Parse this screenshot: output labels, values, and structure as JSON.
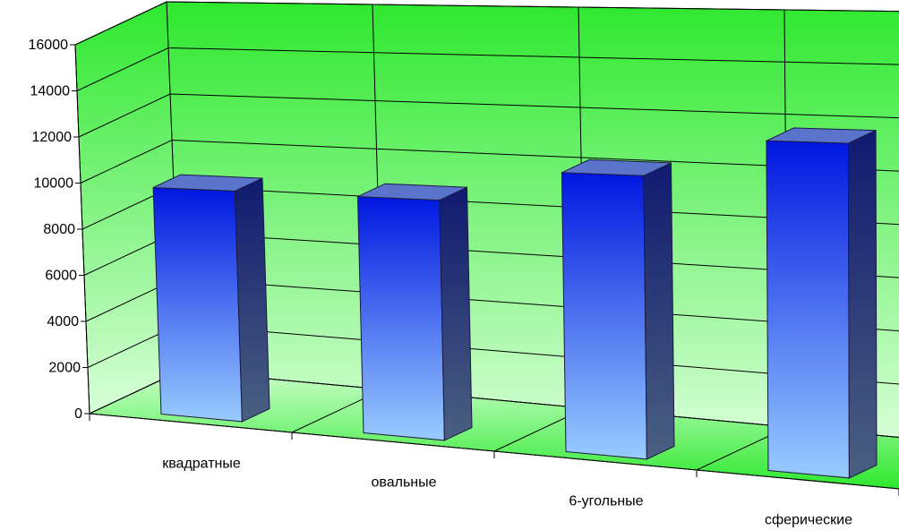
{
  "chart_data": {
    "type": "bar",
    "style": "3d-column",
    "categories": [
      "квадратные",
      "овальные",
      "6-угольные",
      "сферические"
    ],
    "values": [
      9700,
      9700,
      11000,
      12500
    ],
    "y_ticks": [
      "0",
      "2000",
      "4000",
      "6000",
      "8000",
      "10000",
      "12000",
      "14000",
      "16000"
    ],
    "ylim": [
      0,
      16000
    ],
    "grid": true,
    "legend": "none",
    "colors": {
      "wall_top": "#2ee82e",
      "wall_bottom": "#d9ffd9",
      "floor_near": "#2ee82e",
      "floor_far": "#c9ffc9",
      "bar_top": "#0016e0",
      "bar_bottom": "#99ccff",
      "bar_side_top": "#101a70",
      "bar_side_bottom": "#4a6080",
      "bar_cap": "#5a74cc",
      "grid": "#000000"
    }
  }
}
